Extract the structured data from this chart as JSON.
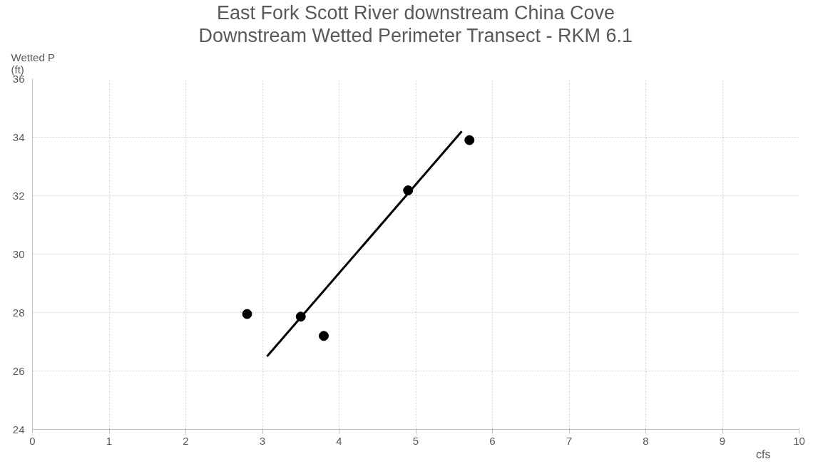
{
  "chart_data": {
    "type": "scatter",
    "title": "East Fork Scott River downstream China Cove",
    "subtitle": "Downstream Wetted Perimeter Transect - RKM 6.1",
    "xlabel": "cfs",
    "ylabel": "Wetted P\n(ft)",
    "series": [
      {
        "color": "#000000",
        "x": [
          2.8,
          3.5,
          3.8,
          4.9,
          5.7
        ],
        "values": [
          27.95,
          27.86,
          27.2,
          32.18,
          33.9
        ],
        "marker": "circle"
      },
      {
        "type": "line",
        "color": "#000000",
        "x": [
          3.06,
          5.6
        ],
        "values": [
          26.5,
          34.2
        ],
        "line_style": "solid"
      }
    ],
    "xlim": [
      0,
      10
    ],
    "xticks": [
      0,
      1,
      2,
      3,
      4,
      5,
      6,
      7,
      8,
      9,
      10
    ],
    "ylim": [
      24,
      36
    ],
    "yticks": [
      24,
      26,
      28,
      30,
      32,
      34,
      36
    ],
    "grid": true
  }
}
